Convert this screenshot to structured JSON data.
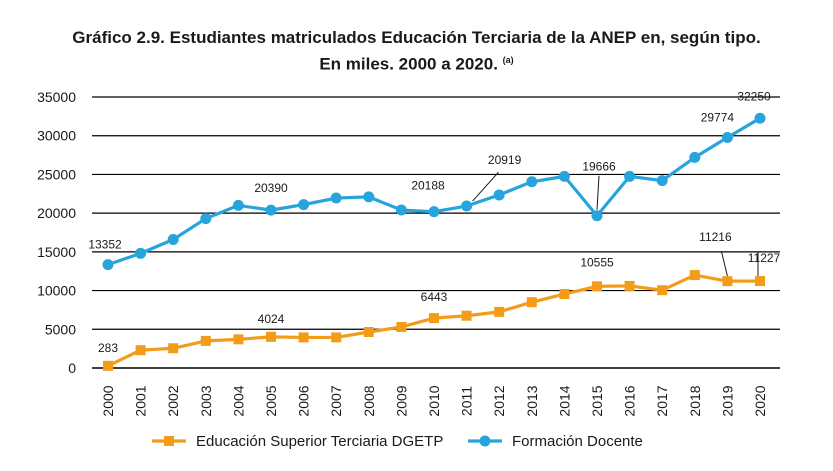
{
  "title": {
    "line1": "Gráfico 2.9. Estudiantes matriculados Educación Terciaria de la ANEP en, según tipo.",
    "line2": "En miles. 2000 a 2020.",
    "note": "(a)"
  },
  "chart_data": {
    "type": "line",
    "title": "Gráfico 2.9. Estudiantes matriculados Educación Terciaria de la ANEP en, según tipo. En miles. 2000 a 2020.",
    "categories": [
      "2000",
      "2001",
      "2002",
      "2003",
      "2004",
      "2005",
      "2006",
      "2007",
      "2008",
      "2009",
      "2010",
      "2011",
      "2012",
      "2013",
      "2014",
      "2015",
      "2016",
      "2017",
      "2018",
      "2019",
      "2020"
    ],
    "ylim": [
      0,
      35000
    ],
    "yticks": [
      "0",
      "5000",
      "10000",
      "15000",
      "20000",
      "25000",
      "30000",
      "35000"
    ],
    "grid": "horizontal",
    "legend_position": "bottom",
    "series": [
      {
        "name": "Educación Superior Terciaria DGETP",
        "color": "#f39c1a",
        "marker": "square",
        "values": [
          283,
          2300,
          2550,
          3500,
          3700,
          4024,
          3950,
          3950,
          4650,
          5300,
          6443,
          6750,
          7250,
          8500,
          9550,
          10555,
          10600,
          10050,
          12000,
          11216,
          11227
        ],
        "labels": [
          {
            "index": 0,
            "text": "283"
          },
          {
            "index": 5,
            "text": "4024"
          },
          {
            "index": 10,
            "text": "6443"
          },
          {
            "index": 15,
            "text": "10555"
          },
          {
            "index": 19,
            "text": "11216"
          },
          {
            "index": 20,
            "text": "11227"
          }
        ]
      },
      {
        "name": "Formación Docente",
        "color": "#27a4db",
        "marker": "circle",
        "values": [
          13352,
          14800,
          16600,
          19300,
          21000,
          20390,
          21100,
          21950,
          22100,
          20400,
          20188,
          20919,
          22350,
          24050,
          24750,
          19666,
          24750,
          24200,
          27200,
          29774,
          32250
        ],
        "labels": [
          {
            "index": 0,
            "text": "13352"
          },
          {
            "index": 5,
            "text": "20390"
          },
          {
            "index": 10,
            "text": "20188"
          },
          {
            "index": 11,
            "text": "20919"
          },
          {
            "index": 15,
            "text": "19666"
          },
          {
            "index": 19,
            "text": "29774"
          },
          {
            "index": 20,
            "text": "32250"
          }
        ]
      }
    ]
  }
}
